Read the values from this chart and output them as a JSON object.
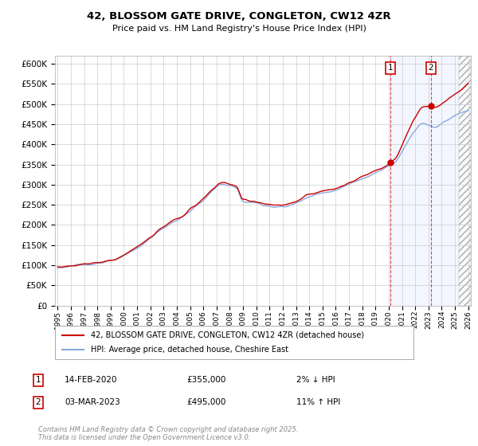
{
  "title": "42, BLOSSOM GATE DRIVE, CONGLETON, CW12 4ZR",
  "subtitle": "Price paid vs. HM Land Registry's House Price Index (HPI)",
  "legend_line1": "42, BLOSSOM GATE DRIVE, CONGLETON, CW12 4ZR (detached house)",
  "legend_line2": "HPI: Average price, detached house, Cheshire East",
  "annotation1_label": "1",
  "annotation1_date": "14-FEB-2020",
  "annotation1_price": "£355,000",
  "annotation1_hpi": "2% ↓ HPI",
  "annotation2_label": "2",
  "annotation2_date": "03-MAR-2023",
  "annotation2_price": "£495,000",
  "annotation2_hpi": "11% ↑ HPI",
  "footer": "Contains HM Land Registry data © Crown copyright and database right 2025.\nThis data is licensed under the Open Government Licence v3.0.",
  "ylim": [
    0,
    620000
  ],
  "yticks": [
    0,
    50000,
    100000,
    150000,
    200000,
    250000,
    300000,
    350000,
    400000,
    450000,
    500000,
    550000,
    600000
  ],
  "xlim_start": 1994.8,
  "xlim_end": 2026.2,
  "marker1_x": 2020.12,
  "marker2_x": 2023.17,
  "future_shade_start": 2020.0,
  "hatch_start": 2025.3,
  "red_line_color": "#cc0000",
  "blue_line_color": "#88aadd",
  "background_color": "#ffffff",
  "grid_color": "#cccccc"
}
